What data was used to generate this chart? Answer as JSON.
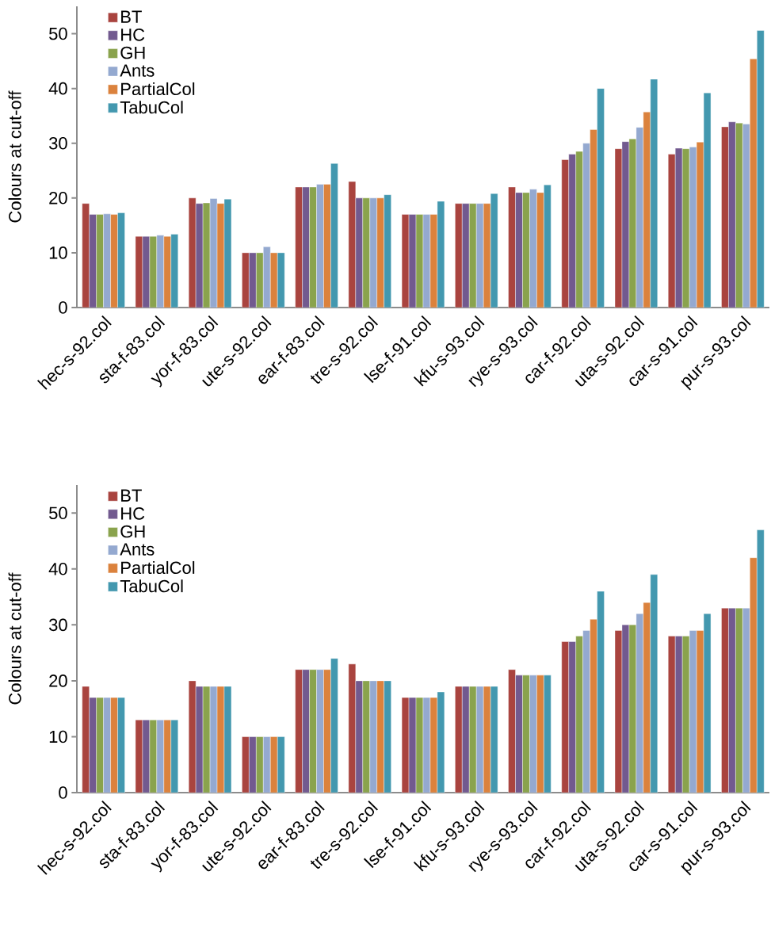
{
  "chart_data": [
    {
      "type": "bar",
      "ylabel": "Colours at cut-off",
      "categories": [
        "hec-s-92.col",
        "sta-f-83.col",
        "yor-f-83.col",
        "ute-s-92.col",
        "ear-f-83.col",
        "tre-s-92.col",
        "lse-f-91.col",
        "kfu-s-93.col",
        "rye-s-93.col",
        "car-f-92.col",
        "uta-s-92.col",
        "car-s-91.col",
        "pur-s-93.col"
      ],
      "ylim": [
        0,
        55
      ],
      "yticks": [
        0,
        10,
        20,
        30,
        40,
        50
      ],
      "legend": "top left",
      "series": [
        {
          "name": "BT",
          "color": "#a9443f",
          "values": [
            19,
            13,
            20,
            10,
            22,
            23,
            17,
            19,
            22,
            27,
            29,
            28,
            33
          ]
        },
        {
          "name": "HC",
          "color": "#725a8f",
          "values": [
            17,
            13,
            19,
            10,
            22,
            20,
            17,
            19,
            21,
            28,
            30.3,
            29.1,
            33.9
          ]
        },
        {
          "name": "GH",
          "color": "#8aa34d",
          "values": [
            17,
            13,
            19.1,
            10,
            22,
            20,
            17,
            19,
            21,
            28.5,
            30.8,
            29,
            33.7
          ]
        },
        {
          "name": "Ants",
          "color": "#94a9d0",
          "values": [
            17.1,
            13.2,
            19.9,
            11.1,
            22.5,
            20,
            17,
            19,
            21.6,
            30,
            32.9,
            29.3,
            33.5
          ]
        },
        {
          "name": "PartialCol",
          "color": "#db823d",
          "values": [
            17,
            13,
            19,
            10,
            22.5,
            20,
            17,
            19,
            21,
            32.5,
            35.7,
            30.2,
            45.4
          ]
        },
        {
          "name": "TabuCol",
          "color": "#4398af",
          "values": [
            17.3,
            13.4,
            19.8,
            10,
            26.3,
            20.6,
            19.4,
            20.8,
            22.4,
            40,
            41.7,
            39.2,
            50.6
          ]
        }
      ]
    },
    {
      "type": "bar",
      "ylabel": "Colours at cut-off",
      "categories": [
        "hec-s-92.col",
        "sta-f-83.col",
        "yor-f-83.col",
        "ute-s-92.col",
        "ear-f-83.col",
        "tre-s-92.col",
        "lse-f-91.col",
        "kfu-s-93.col",
        "rye-s-93.col",
        "car-f-92.col",
        "uta-s-92.col",
        "car-s-91.col",
        "pur-s-93.col"
      ],
      "ylim": [
        0,
        55
      ],
      "yticks": [
        0,
        10,
        20,
        30,
        40,
        50
      ],
      "legend": "top left",
      "series": [
        {
          "name": "BT",
          "color": "#a9443f",
          "values": [
            19,
            13,
            20,
            10,
            22,
            23,
            17,
            19,
            22,
            27,
            29,
            28,
            33
          ]
        },
        {
          "name": "HC",
          "color": "#725a8f",
          "values": [
            17,
            13,
            19,
            10,
            22,
            20,
            17,
            19,
            21,
            27,
            30,
            28,
            33
          ]
        },
        {
          "name": "GH",
          "color": "#8aa34d",
          "values": [
            17,
            13,
            19,
            10,
            22,
            20,
            17,
            19,
            21,
            28,
            30,
            28,
            33
          ]
        },
        {
          "name": "Ants",
          "color": "#94a9d0",
          "values": [
            17,
            13,
            19,
            10,
            22,
            20,
            17,
            19,
            21,
            29,
            32,
            29,
            33
          ]
        },
        {
          "name": "PartialCol",
          "color": "#db823d",
          "values": [
            17,
            13,
            19,
            10,
            22,
            20,
            17,
            19,
            21,
            31,
            34,
            29,
            42
          ]
        },
        {
          "name": "TabuCol",
          "color": "#4398af",
          "values": [
            17,
            13,
            19,
            10,
            24,
            20,
            18,
            19,
            21,
            36,
            39,
            32,
            47
          ]
        }
      ]
    }
  ]
}
